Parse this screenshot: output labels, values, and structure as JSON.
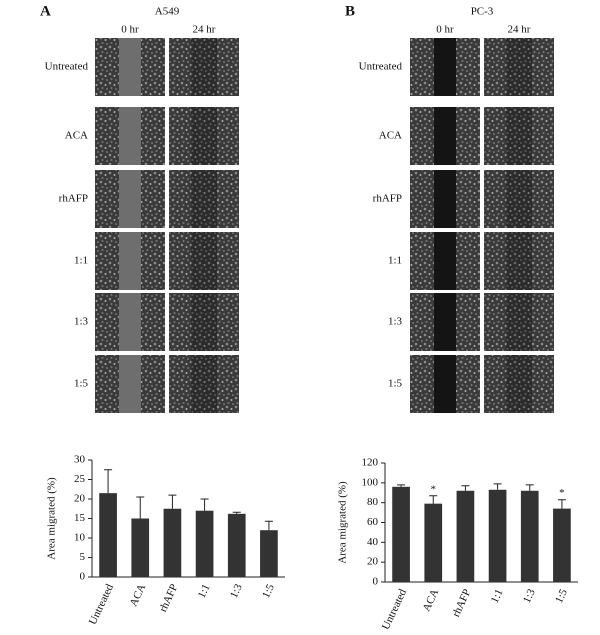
{
  "panels": [
    {
      "label": "A",
      "cell_line": "A549",
      "columns": [
        "0 hr",
        "24 hr"
      ],
      "rows": [
        "Untreated",
        "ACA",
        "rhAFP",
        "1:1",
        "1:3",
        "1:5"
      ]
    },
    {
      "label": "B",
      "cell_line": "PC-3",
      "columns": [
        "0 hr",
        "24 hr"
      ],
      "rows": [
        "Untreated",
        "ACA",
        "rhAFP",
        "1:1",
        "1:3",
        "1:5"
      ]
    }
  ],
  "chart_data": [
    {
      "type": "bar",
      "ylabel": "Area migrated (%)",
      "categories": [
        "Untreated",
        "ACA",
        "rhAFP",
        "1:1",
        "1:3",
        "1:5"
      ],
      "series": [
        {
          "color": "#333333",
          "values": [
            21.5,
            15,
            17.5,
            17,
            16.2,
            12
          ],
          "errors": [
            6,
            5.5,
            3.5,
            3,
            0.4,
            2.3
          ]
        }
      ],
      "ylim": [
        0,
        30
      ],
      "yticks": [
        0,
        5,
        10,
        15,
        20,
        25,
        30
      ]
    },
    {
      "type": "bar",
      "ylabel": "Area migrated (%)",
      "categories": [
        "Untreated",
        "ACA",
        "rhAFP",
        "1:1",
        "1:3",
        "1:5"
      ],
      "series": [
        {
          "color": "#333333",
          "values": [
            96,
            79,
            92,
            93,
            92,
            74
          ],
          "errors": [
            2,
            8,
            5,
            6,
            6,
            9
          ]
        }
      ],
      "ylim": [
        0,
        120
      ],
      "yticks": [
        0,
        20,
        40,
        60,
        80,
        100,
        120
      ],
      "annotations": [
        {
          "category": "ACA",
          "text": "*"
        },
        {
          "category": "1:5",
          "text": "*"
        }
      ]
    }
  ]
}
